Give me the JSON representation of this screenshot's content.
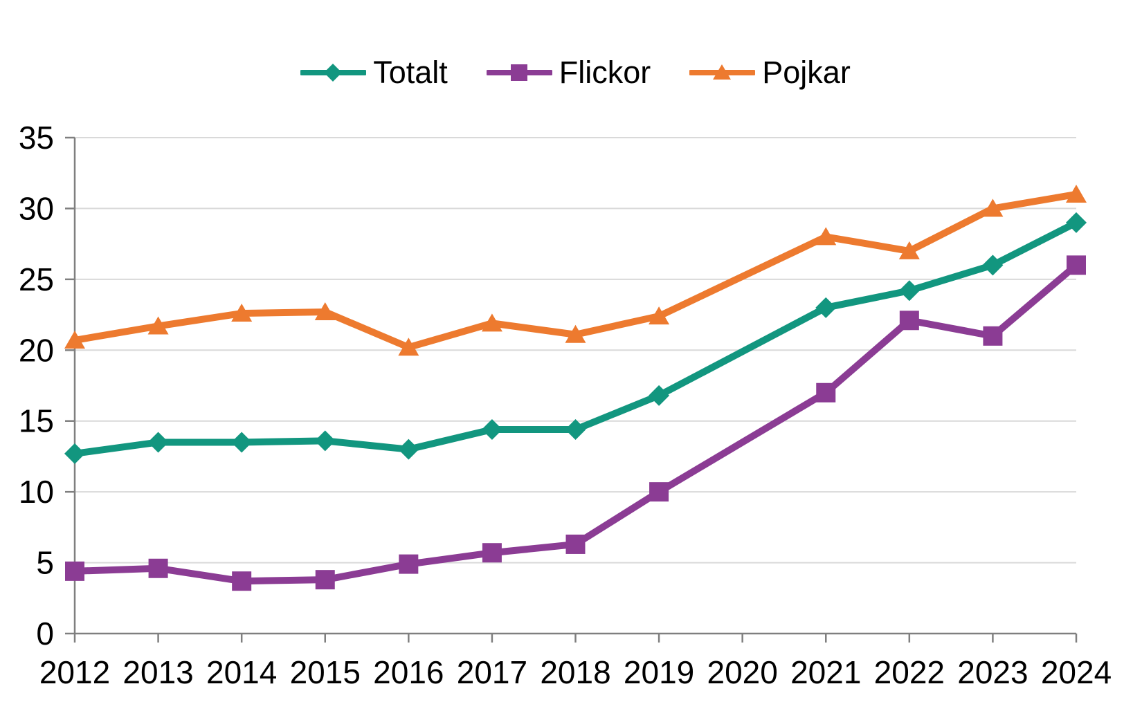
{
  "colors": {
    "background": "#FFFFFF",
    "grid": "#D9D9D9",
    "axis": "#7F7F7F",
    "text": "#000000"
  },
  "chart_data": {
    "type": "line",
    "title": "",
    "categories": [
      "2012",
      "2013",
      "2014",
      "2015",
      "2016",
      "2017",
      "2018",
      "2019",
      "2020",
      "2021",
      "2022",
      "2023",
      "2024"
    ],
    "xlabel": "",
    "ylabel": "",
    "ylim": [
      0,
      35
    ],
    "y_tick_step": 5,
    "y_tick_labels": [
      "0",
      "5",
      "10",
      "15",
      "20",
      "25",
      "30",
      "35"
    ],
    "grid": "horizontal",
    "legend_position": "top-center",
    "missing_data_note": "no markers at 2020; lines connect 2019 to 2021",
    "series": [
      {
        "name": "Totalt",
        "color": "#12967F",
        "marker": "diamond",
        "values": [
          12.7,
          13.5,
          13.5,
          13.6,
          13.0,
          14.4,
          14.4,
          16.8,
          null,
          23.0,
          24.2,
          26.0,
          29.0
        ]
      },
      {
        "name": "Flickor",
        "color": "#8B3C94",
        "marker": "square",
        "values": [
          4.4,
          4.6,
          3.7,
          3.8,
          4.9,
          5.7,
          6.3,
          10.0,
          null,
          17.0,
          22.1,
          21.0,
          26.0
        ]
      },
      {
        "name": "Pojkar",
        "color": "#ED7A2F",
        "marker": "triangle",
        "values": [
          20.7,
          21.7,
          22.6,
          22.7,
          20.2,
          21.9,
          21.1,
          22.4,
          null,
          28.0,
          27.0,
          30.0,
          31.0
        ]
      }
    ]
  }
}
